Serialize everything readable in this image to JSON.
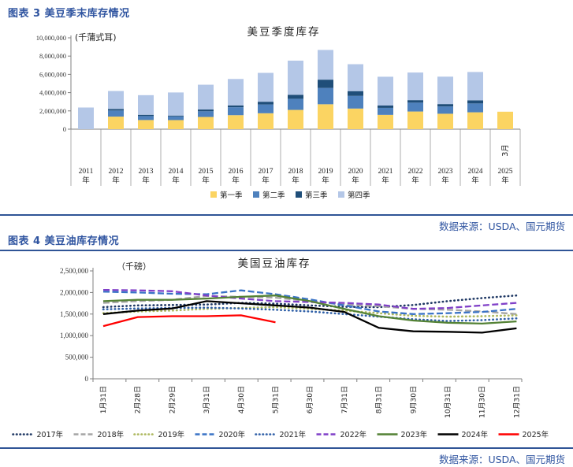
{
  "page": {
    "fig3_heading": "图表 3 美豆季末库存情况",
    "fig4_heading": "图表 4 美豆油库存情况",
    "source_note": "数据来源：USDA、国元期货",
    "accent_color": "#2F5496"
  },
  "chart_data": [
    {
      "type": "bar",
      "stacked": true,
      "title": "美豆季度库存",
      "unit_label": "(千蒲式耳)",
      "ylabel": "",
      "xlabel": "",
      "ylim": [
        0,
        10000000
      ],
      "ytick_step": 2000000,
      "grid": false,
      "legend_position": "bottom",
      "categories": [
        "2011年",
        "2012年",
        "2013年",
        "2014年",
        "2015年",
        "2016年",
        "2017年",
        "2018年",
        "2019年",
        "2020年",
        "2021年",
        "2022年",
        "2023年",
        "2024年",
        "2025年"
      ],
      "extra_note": {
        "category_index": 14,
        "label": "3月"
      },
      "series": [
        {
          "name": "第一季",
          "color": "#FBD462",
          "values": [
            0,
            1374000,
            998000,
            992000,
            1334000,
            1531000,
            1739000,
            2107000,
            2727000,
            2255000,
            1564000,
            1932000,
            1687000,
            1845000,
            1910000
          ]
        },
        {
          "name": "第二季",
          "color": "#4E81BD",
          "values": [
            0,
            667000,
            435000,
            405000,
            625000,
            870000,
            963000,
            1219000,
            1783000,
            1386000,
            769000,
            971000,
            796000,
            970000,
            0
          ]
        },
        {
          "name": "第三季",
          "color": "#1F4E79",
          "values": [
            0,
            169000,
            141000,
            92000,
            191000,
            197000,
            301000,
            438000,
            909000,
            523000,
            257000,
            274000,
            264000,
            342000,
            0
          ]
        },
        {
          "name": "第四季",
          "color": "#B4C7E7",
          "values": [
            2370000,
            1966000,
            2148000,
            2528000,
            2715000,
            2895000,
            3157000,
            3736000,
            3252000,
            2947000,
            3149000,
            3021000,
            3000000,
            3100000,
            0
          ]
        }
      ]
    },
    {
      "type": "line",
      "title": "美国豆油库存",
      "unit_label": "（千磅）",
      "ylabel": "",
      "xlabel": "",
      "ylim": [
        0,
        2500000
      ],
      "ytick_step": 500000,
      "grid": false,
      "legend_position": "bottom",
      "categories": [
        "1月31日",
        "2月28日",
        "2月29日",
        "3月31日",
        "4月30日",
        "5月31日",
        "6月30日",
        "7月31日",
        "8月31日",
        "9月30日",
        "10月31日",
        "11月30日",
        "12月31日"
      ],
      "series": [
        {
          "name": "2017年",
          "color": "#1F3864",
          "style": "dotted",
          "values": [
            1660000,
            1700000,
            1710000,
            1720000,
            1760000,
            1740000,
            1700000,
            1670000,
            1660000,
            1710000,
            1800000,
            1870000,
            1930000
          ]
        },
        {
          "name": "2018年",
          "color": "#A5A5A5",
          "style": "dashed",
          "values": [
            1760000,
            1800000,
            1830000,
            1920000,
            1900000,
            1880000,
            1800000,
            1720000,
            1680000,
            1620000,
            1600000,
            1560000,
            1500000
          ]
        },
        {
          "name": "2019年",
          "color": "#ADB85F",
          "style": "dotted",
          "values": [
            1520000,
            1560000,
            1580000,
            1620000,
            1640000,
            1660000,
            1620000,
            1580000,
            1520000,
            1460000,
            1440000,
            1450000,
            1470000
          ]
        },
        {
          "name": "2020年",
          "color": "#3A73C6",
          "style": "dashed",
          "values": [
            2020000,
            2000000,
            1970000,
            1960000,
            2050000,
            1960000,
            1840000,
            1700000,
            1560000,
            1500000,
            1520000,
            1550000,
            1620000
          ]
        },
        {
          "name": "2021年",
          "color": "#3060A8",
          "style": "dotted",
          "values": [
            1610000,
            1630000,
            1640000,
            1650000,
            1630000,
            1600000,
            1560000,
            1500000,
            1440000,
            1380000,
            1340000,
            1360000,
            1400000
          ]
        },
        {
          "name": "2022年",
          "color": "#8040C8",
          "style": "dashed",
          "values": [
            2060000,
            2050000,
            2030000,
            1930000,
            1860000,
            1800000,
            1780000,
            1760000,
            1720000,
            1620000,
            1640000,
            1700000,
            1760000
          ]
        },
        {
          "name": "2023年",
          "color": "#548235",
          "style": "solid",
          "values": [
            1800000,
            1830000,
            1830000,
            1860000,
            1900000,
            1930000,
            1800000,
            1620000,
            1450000,
            1350000,
            1300000,
            1280000,
            1330000
          ]
        },
        {
          "name": "2024年",
          "color": "#000000",
          "style": "solid",
          "values": [
            1500000,
            1580000,
            1630000,
            1800000,
            1750000,
            1700000,
            1650000,
            1550000,
            1180000,
            1100000,
            1090000,
            1070000,
            1170000
          ]
        },
        {
          "name": "2025年",
          "color": "#FF0000",
          "style": "solid",
          "values": [
            1220000,
            1430000,
            1450000,
            1450000,
            1470000,
            1310000,
            null,
            null,
            null,
            null,
            null,
            null,
            null
          ]
        }
      ]
    }
  ]
}
